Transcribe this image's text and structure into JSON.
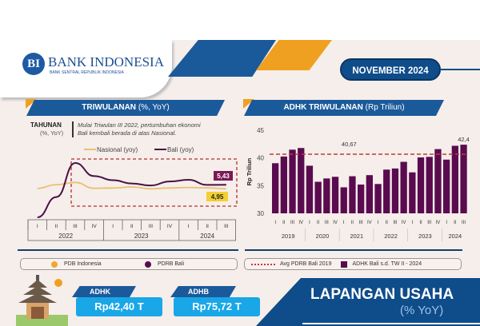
{
  "header": {
    "logo_mark": "BI",
    "logo_name": "BANK INDONESIA",
    "logo_sub": "BANK SENTRAL REPUBLIK INDONESIA",
    "date": "NOVEMBER  2024"
  },
  "left_panel": {
    "title_bold": "TRIWULANAN",
    "title_light": "(%, YoY)",
    "side_label_bold": "TAHUNAN",
    "side_label_light": "(%, YoY)",
    "note_line1": "Mulai Triwulan III 2022, pertumbuhan ekonomi",
    "note_line2": "Bali kembali berada di atas Nasional.",
    "legend": [
      {
        "label": "PDB Indonesia",
        "color": "#f0a830"
      },
      {
        "label": "PDRB Bali",
        "color": "#5a0b50"
      }
    ]
  },
  "right_panel": {
    "title_bold": "ADHK TRIWULANAN",
    "title_light": "(Rp Triliun)",
    "legend": [
      {
        "label": "Avg PDRB Bali 2019",
        "color": "#c0393b"
      },
      {
        "label": "ADHK Bali s.d. TW II - 2024",
        "color": "#5a0b50"
      }
    ]
  },
  "bottom": {
    "adhk_label": "ADHK",
    "adhk_value": "Rp42,40  T",
    "adhb_label": "ADHB",
    "adhb_value": "Rp75,72  T",
    "section_title": "LAPANGAN USAHA",
    "section_sub": "(% YoY)"
  },
  "chart_data": [
    {
      "type": "line",
      "series": [
        {
          "name": "Nasional (yoy)",
          "color": "#e8c070",
          "values": [
            5.0,
            5.45,
            5.72,
            5.01,
            5.04,
            5.17,
            4.94,
            5.04,
            5.11,
            5.05,
            4.95
          ]
        },
        {
          "name": "Bali (yoy)",
          "color": "#4a1048",
          "values": [
            1.46,
            3.94,
            8.09,
            6.5,
            6.0,
            5.6,
            5.35,
            5.84,
            6.04,
            5.42,
            5.43
          ]
        }
      ],
      "quarters": [
        "I",
        "II",
        "III",
        "IV",
        "I",
        "II",
        "III",
        "IV",
        "I",
        "II",
        "III"
      ],
      "years": [
        "2022",
        "2023",
        "2024"
      ],
      "annotations": [
        {
          "text": "5,43",
          "color": "#7a1a55"
        },
        {
          "text": "4,95",
          "color": "#f2d030"
        }
      ],
      "highlight_from": "2022 III"
    },
    {
      "type": "bar",
      "color": "#5a0b50",
      "ylabel": "Rp Triliun",
      "ylim": [
        30,
        45
      ],
      "yticks": [
        30,
        35,
        40,
        45
      ],
      "quarters": [
        "I",
        "II",
        "III",
        "IV",
        "I",
        "II",
        "III",
        "IV",
        "I",
        "II",
        "III",
        "IV",
        "I",
        "II",
        "III",
        "IV",
        "I",
        "II",
        "III",
        "IV",
        "I",
        "II",
        "III"
      ],
      "years": [
        "2019",
        "2020",
        "2021",
        "2022",
        "2023",
        "2024"
      ],
      "values": [
        39.05,
        40.26,
        41.5,
        41.8,
        38.6,
        35.7,
        36.3,
        36.6,
        34.7,
        36.7,
        35.2,
        36.9,
        35.3,
        37.9,
        38.1,
        39.3,
        37.4,
        40.1,
        40.2,
        41.6,
        39.7,
        42.2,
        42.4
      ],
      "reference_line": {
        "value": 40.67,
        "label": "40,67",
        "color": "#c0393b"
      },
      "last_label": "42,4"
    }
  ]
}
